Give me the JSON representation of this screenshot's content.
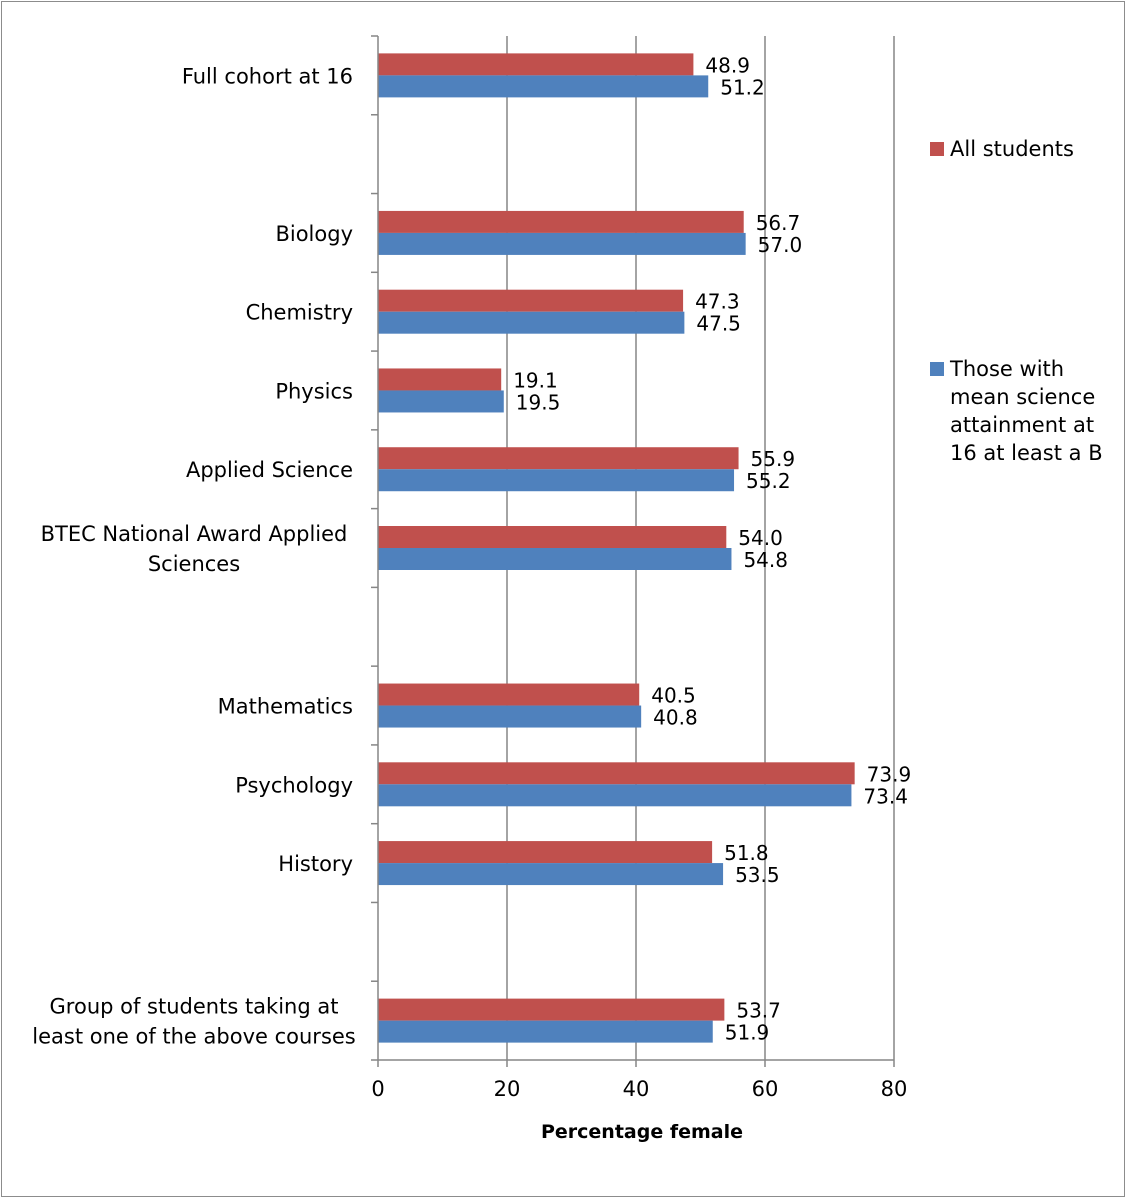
{
  "chart_data": {
    "type": "bar",
    "orientation": "horizontal",
    "xlabel": "Percentage female",
    "ylabel": "",
    "xlim": [
      0,
      80
    ],
    "xticks": [
      0,
      20,
      40,
      60,
      80
    ],
    "grid": "vertical",
    "legend_position": "right",
    "slots": [
      {
        "category": "Full cohort at 16",
        "index": 0
      },
      {
        "category": "",
        "index": 1
      },
      {
        "category": "Biology",
        "index": 2
      },
      {
        "category": "Chemistry",
        "index": 3
      },
      {
        "category": "Physics",
        "index": 4
      },
      {
        "category": "Applied Science",
        "index": 5
      },
      {
        "category": "BTEC National Award Applied Sciences",
        "index": 6
      },
      {
        "category": "",
        "index": 7
      },
      {
        "category": "Mathematics",
        "index": 8
      },
      {
        "category": "Psychology",
        "index": 9
      },
      {
        "category": "History",
        "index": 10
      },
      {
        "category": "",
        "index": 11
      },
      {
        "category": "Group of students taking at least one of the above courses",
        "index": 12
      }
    ],
    "categories": [
      "Full cohort at 16",
      "Biology",
      "Chemistry",
      "Physics",
      "Applied Science",
      "BTEC National Award Applied Sciences",
      "Mathematics",
      "Psychology",
      "History",
      "Group of students taking at least one of the above courses"
    ],
    "series": [
      {
        "name": "All students",
        "color": "#c0504d",
        "values": [
          48.9,
          56.7,
          47.3,
          19.1,
          55.9,
          54.0,
          40.5,
          73.9,
          51.8,
          53.7
        ],
        "labels": [
          "48.9",
          "56.7",
          "47.3",
          "19.1",
          "55.9",
          "54.0",
          "40.5",
          "73.9",
          "51.8",
          "53.7"
        ]
      },
      {
        "name": "Those with mean science attainment at 16 at least a B",
        "color": "#4f81bd",
        "values": [
          51.2,
          57.0,
          47.5,
          19.5,
          55.2,
          54.8,
          40.8,
          73.4,
          53.5,
          51.9
        ],
        "labels": [
          "51.2",
          "57.0",
          "47.5",
          "19.5",
          "55.2",
          "54.8",
          "40.8",
          "73.4",
          "53.5",
          "51.9"
        ]
      }
    ],
    "legend": [
      {
        "lines": [
          "All students"
        ]
      },
      {
        "lines": [
          "Those with",
          "mean science",
          "attainment at",
          "16 at least a B"
        ]
      }
    ],
    "category_lines": {
      "BTEC National Award Applied Sciences": [
        "BTEC National Award Applied",
        "Sciences"
      ],
      "Group of students taking at least one of the above courses": [
        "Group of students taking at",
        "least one of the above courses"
      ]
    }
  }
}
